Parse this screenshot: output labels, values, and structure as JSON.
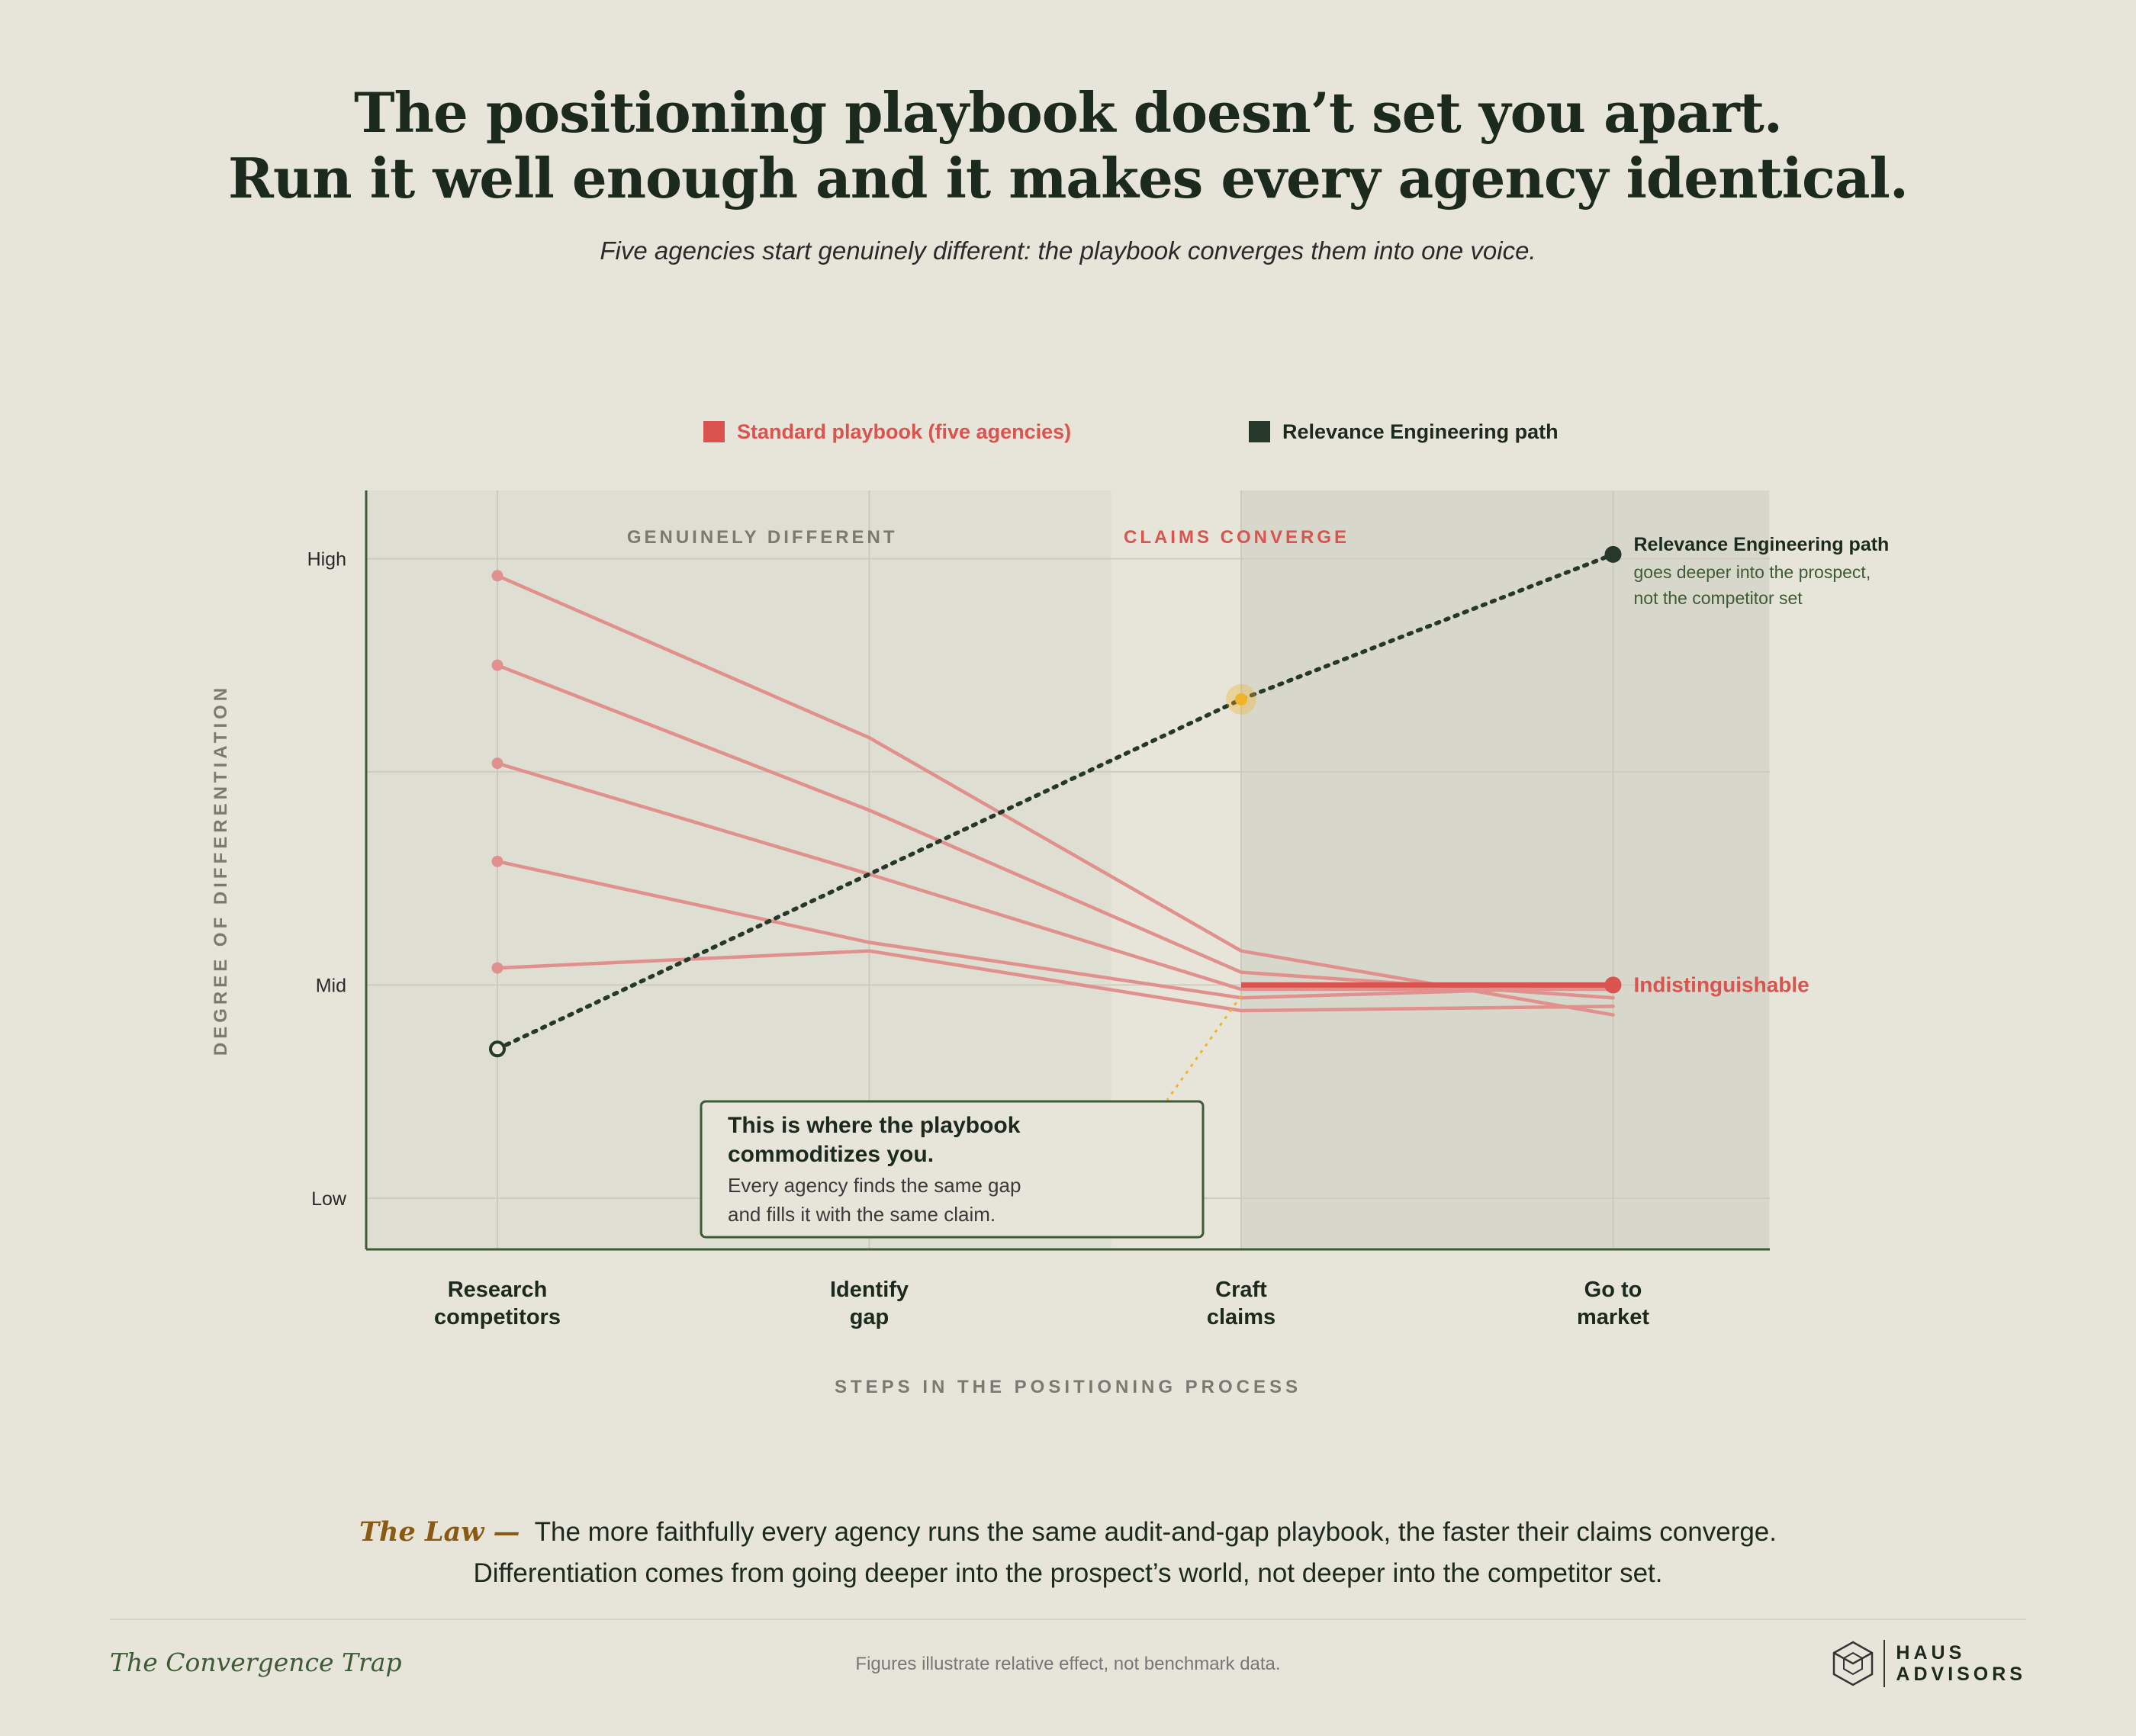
{
  "header": {
    "title_line1": "The positioning playbook doesn’t set you apart.",
    "title_line2": "Run it well enough and it makes every agency identical.",
    "subtitle": "Five agencies start genuinely different: the playbook converges them into one voice."
  },
  "legend": {
    "standard": "Standard playbook (five agencies)",
    "relevance": "Relevance Engineering path"
  },
  "colors": {
    "standard": "#d9534f",
    "standard_line": "#e0908d",
    "relevance": "#26382a",
    "highlight": "#f0b429",
    "zone_left": "#dfded2",
    "zone_right": "#d8d7cb"
  },
  "chart_data": {
    "type": "line",
    "title": "",
    "xlabel": "STEPS IN THE POSITIONING PROCESS",
    "ylabel": "DEGREE OF DIFFERENTIATION",
    "categories": [
      "Research\ncompetitors",
      "Identify\ngap",
      "Craft\nclaims",
      "Go to\nmarket"
    ],
    "y_ticks": [
      {
        "label": "High",
        "value": 100
      },
      {
        "label": "Mid",
        "value": 50
      },
      {
        "label": "Low",
        "value": 25
      }
    ],
    "ylim": [
      19,
      108
    ],
    "grid": true,
    "legend_position": "top",
    "zones": [
      {
        "label": "GENUINELY DIFFERENT",
        "from": 0,
        "to": 1.65
      },
      {
        "label": "CLAIMS CONVERGE",
        "from": 2,
        "to": 3.42
      }
    ],
    "series": [
      {
        "group": "standard",
        "values": [
          98,
          79,
          54,
          46.5
        ]
      },
      {
        "group": "standard",
        "values": [
          87.5,
          70.5,
          51.5,
          48.5
        ]
      },
      {
        "group": "standard",
        "values": [
          76,
          63,
          49.5,
          49.5
        ]
      },
      {
        "group": "standard",
        "values": [
          64.5,
          55,
          48.5,
          49.8
        ]
      },
      {
        "group": "standard",
        "values": [
          52,
          54,
          47,
          47.5
        ]
      },
      {
        "group": "relevance",
        "name": "Relevance Engineering path",
        "values": [
          42.5,
          null,
          83.5,
          100.5
        ]
      }
    ],
    "annotations": {
      "relevance_end_title": "Relevance Engineering path",
      "relevance_end_line1": "goes deeper into the prospect,",
      "relevance_end_line2": "not the competitor set",
      "converge_label": "Indistinguishable",
      "callout_title_line1": "This is where the playbook",
      "callout_title_line2": "commoditizes you.",
      "callout_body_line1": "Every agency finds the same gap",
      "callout_body_line2": "and fills it with the same claim."
    }
  },
  "law": {
    "label": "The Law —",
    "text": "The more faithfully every agency runs the same audit-and-gap playbook, the faster their claims converge. Differentiation comes from going deeper into the prospect’s world, not deeper into the competitor set."
  },
  "footer": {
    "title": "The Convergence Trap",
    "note": "Figures illustrate relative effect, not benchmark data.",
    "brand_line1": "HAUS",
    "brand_line2": "ADVISORS"
  }
}
